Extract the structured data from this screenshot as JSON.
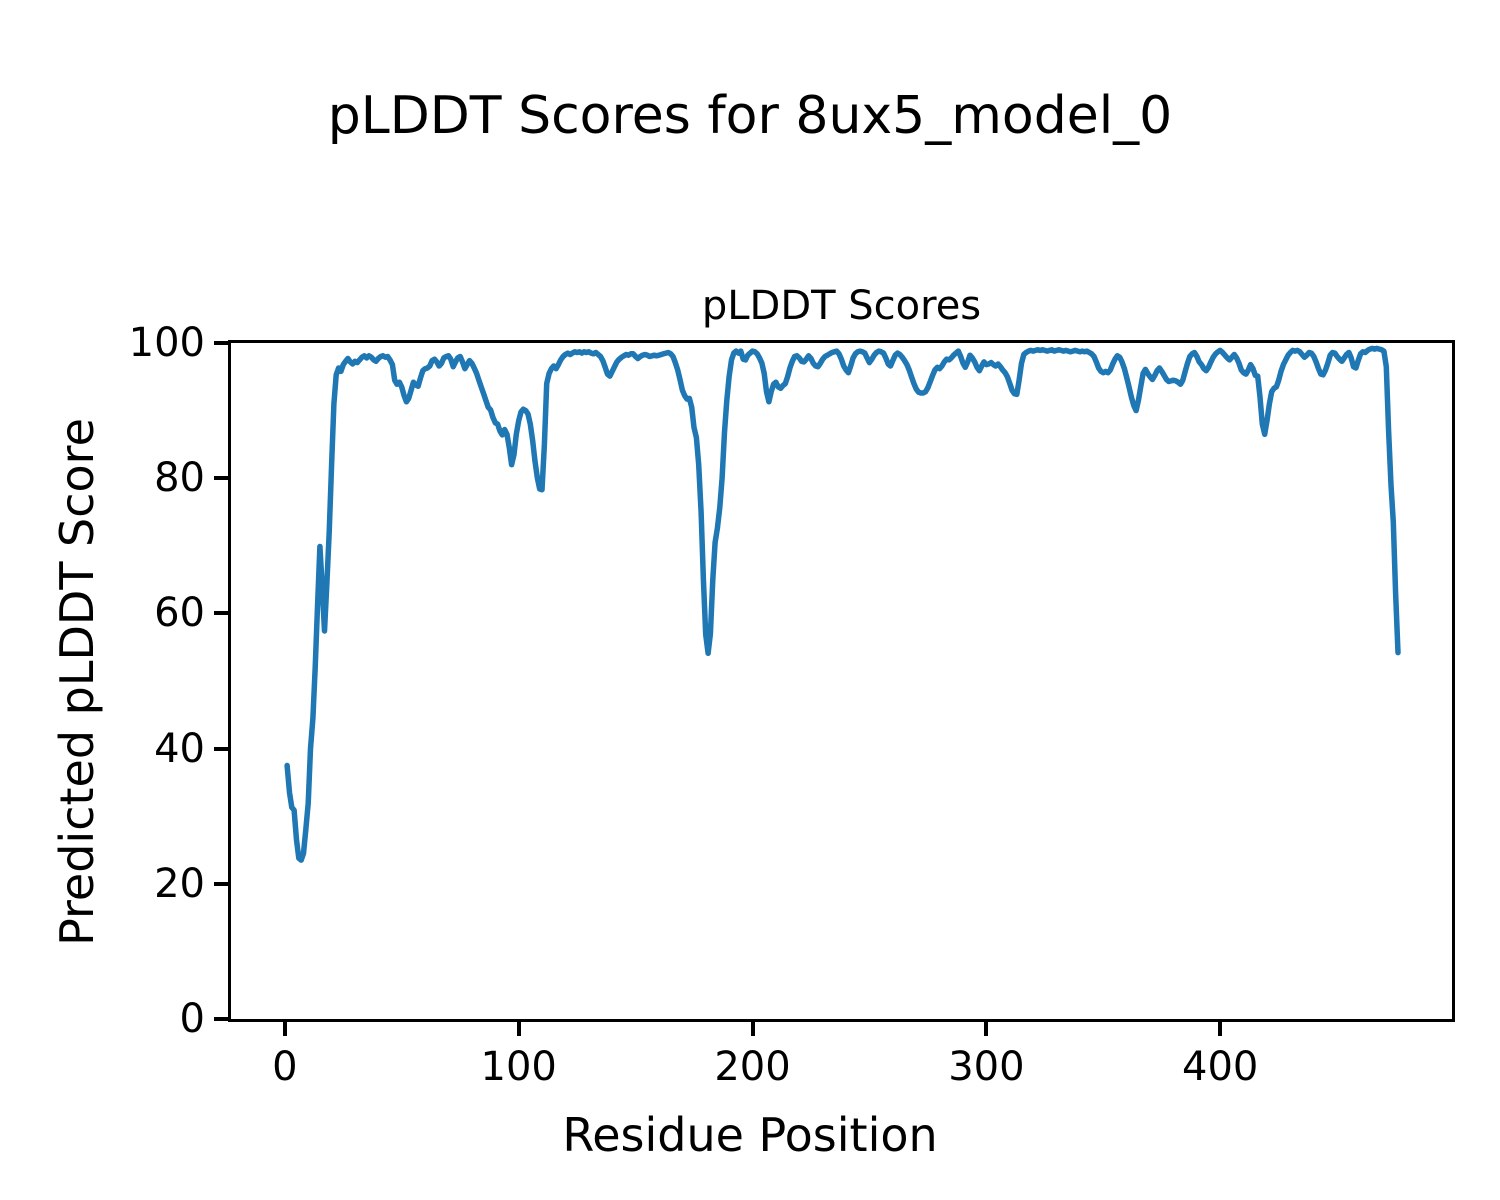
{
  "figure": {
    "suptitle": "pLDDT Scores for 8ux5_model_0",
    "background": "#ffffff",
    "text_color": "#000000"
  },
  "chart_data": {
    "type": "line",
    "title": "pLDDT Scores",
    "xlabel": "Residue Position",
    "ylabel": "Predicted pLDDT Score",
    "xlim": [
      -23.0,
      499.1
    ],
    "ylim": [
      0,
      100
    ],
    "x_ticks": [
      0,
      100,
      200,
      300,
      400
    ],
    "y_ticks": [
      0,
      20,
      40,
      60,
      80,
      100
    ],
    "grid": false,
    "legend": null,
    "line_color": "#1f77b4",
    "line_width": 5.5,
    "series": [
      {
        "name": "pLDDT",
        "x_start": 1,
        "x_step": 1,
        "values": [
          37.5,
          33.5,
          31.3,
          30.9,
          26.5,
          23.8,
          23.5,
          24.5,
          28.0,
          31.9,
          40.0,
          44.5,
          52.0,
          61.0,
          69.9,
          64.0,
          57.4,
          64.5,
          72.0,
          82.0,
          91.0,
          95.3,
          96.3,
          95.8,
          96.8,
          97.3,
          97.7,
          97.2,
          96.9,
          97.3,
          97.1,
          97.5,
          97.9,
          98.1,
          97.8,
          98.1,
          97.9,
          97.5,
          97.3,
          97.7,
          98.0,
          98.1,
          97.9,
          98.0,
          97.5,
          96.8,
          94.5,
          93.9,
          94.2,
          93.5,
          92.2,
          91.3,
          91.8,
          93.0,
          94.2,
          93.8,
          93.6,
          94.8,
          95.9,
          96.2,
          96.3,
          96.6,
          97.4,
          97.6,
          97.2,
          96.6,
          97.0,
          97.8,
          98.0,
          98.1,
          97.6,
          96.5,
          97.2,
          97.8,
          98.0,
          97.2,
          96.2,
          96.8,
          97.4,
          97.0,
          96.3,
          95.5,
          94.5,
          93.5,
          92.5,
          91.5,
          90.5,
          90.1,
          89.0,
          88.2,
          88.0,
          87.0,
          86.4,
          87.2,
          86.5,
          84.5,
          82.0,
          83.5,
          86.5,
          88.5,
          89.8,
          90.2,
          90.0,
          89.5,
          88.0,
          85.5,
          82.5,
          80.0,
          78.4,
          78.3,
          85.0,
          94.0,
          95.5,
          96.2,
          96.6,
          96.2,
          96.8,
          97.5,
          98.0,
          98.3,
          98.5,
          98.3,
          98.5,
          98.7,
          98.6,
          98.7,
          98.5,
          98.7,
          98.6,
          98.7,
          98.5,
          98.4,
          98.6,
          98.3,
          98.0,
          97.4,
          96.4,
          95.4,
          95.1,
          95.8,
          96.5,
          97.2,
          97.6,
          97.9,
          98.1,
          98.3,
          98.2,
          98.4,
          98.4,
          98.0,
          97.7,
          98.0,
          98.2,
          98.3,
          98.2,
          98.0,
          98.1,
          98.2,
          98.1,
          98.2,
          98.3,
          98.4,
          98.5,
          98.6,
          98.4,
          98.0,
          97.1,
          96.0,
          94.6,
          93.0,
          92.2,
          91.7,
          91.8,
          90.5,
          87.5,
          86.0,
          82.0,
          75.0,
          65.0,
          56.9,
          54.1,
          57.0,
          65.0,
          70.5,
          72.6,
          75.7,
          80.0,
          86.8,
          91.5,
          95.0,
          97.5,
          98.5,
          98.8,
          98.5,
          98.8,
          97.6,
          97.5,
          98.2,
          98.5,
          98.8,
          98.7,
          98.4,
          97.8,
          97.0,
          95.5,
          92.8,
          91.3,
          92.8,
          93.9,
          94.2,
          93.5,
          93.3,
          93.7,
          94.0,
          95.0,
          96.3,
          97.3,
          98.0,
          98.1,
          97.8,
          97.3,
          97.2,
          97.6,
          98.1,
          97.7,
          97.0,
          96.6,
          96.5,
          97.0,
          97.6,
          98.0,
          98.2,
          98.4,
          98.6,
          98.7,
          98.8,
          98.4,
          97.6,
          96.6,
          96.0,
          95.6,
          96.6,
          97.8,
          98.4,
          98.7,
          98.8,
          98.7,
          98.5,
          97.8,
          97.1,
          97.6,
          98.2,
          98.6,
          98.8,
          98.7,
          98.5,
          97.8,
          96.9,
          96.6,
          97.4,
          98.2,
          98.5,
          98.3,
          97.9,
          97.4,
          96.8,
          96.0,
          95.0,
          94.0,
          93.2,
          92.7,
          92.6,
          92.6,
          92.8,
          93.4,
          94.3,
          95.2,
          96.0,
          96.4,
          96.2,
          96.6,
          97.2,
          97.6,
          97.5,
          97.8,
          98.2,
          98.5,
          98.8,
          98.0,
          97.0,
          96.4,
          97.2,
          98.2,
          97.8,
          97.2,
          96.4,
          95.9,
          96.6,
          97.2,
          96.8,
          96.9,
          97.1,
          96.8,
          96.6,
          96.9,
          96.5,
          96.0,
          95.6,
          95.0,
          94.0,
          93.0,
          92.5,
          92.4,
          94.5,
          97.0,
          98.3,
          98.6,
          98.8,
          98.9,
          98.8,
          98.9,
          99.0,
          98.9,
          99.0,
          98.9,
          98.8,
          98.9,
          99.0,
          98.8,
          98.9,
          99.0,
          98.9,
          98.8,
          98.9,
          98.8,
          98.7,
          98.8,
          98.9,
          98.8,
          98.7,
          98.8,
          98.7,
          98.8,
          98.6,
          98.4,
          98.0,
          97.2,
          96.3,
          95.8,
          95.6,
          95.8,
          95.6,
          96.0,
          96.9,
          97.6,
          98.1,
          97.9,
          97.2,
          96.2,
          94.9,
          93.5,
          92.0,
          90.8,
          90.0,
          91.5,
          93.5,
          95.5,
          96.1,
          95.5,
          95.0,
          94.6,
          95.2,
          95.9,
          96.3,
          95.8,
          95.2,
          94.6,
          94.3,
          94.4,
          94.5,
          94.4,
          94.2,
          93.9,
          94.5,
          95.8,
          97.0,
          98.0,
          98.4,
          98.6,
          98.0,
          97.2,
          96.8,
          96.2,
          95.9,
          96.4,
          97.2,
          97.9,
          98.4,
          98.7,
          98.9,
          98.6,
          98.2,
          97.8,
          97.5,
          97.9,
          98.3,
          97.8,
          97.0,
          96.0,
          95.6,
          95.4,
          96.0,
          96.8,
          96.2,
          95.2,
          95.1,
          92.0,
          88.0,
          86.5,
          88.5,
          91.0,
          92.8,
          93.3,
          93.5,
          94.5,
          95.8,
          96.8,
          97.5,
          98.2,
          98.6,
          98.9,
          98.8,
          98.9,
          98.7,
          98.3,
          97.9,
          98.2,
          98.6,
          98.5,
          98.0,
          97.2,
          96.2,
          95.4,
          95.3,
          96.0,
          97.0,
          98.2,
          98.6,
          98.5,
          98.0,
          97.6,
          97.3,
          97.8,
          98.3,
          98.6,
          97.8,
          96.5,
          96.3,
          97.4,
          98.4,
          98.7,
          98.6,
          98.9,
          99.1,
          99.2,
          99.1,
          99.2,
          99.1,
          99.0,
          98.8,
          96.5,
          87.0,
          79.0,
          73.5,
          63.0,
          54.2
        ]
      }
    ]
  }
}
